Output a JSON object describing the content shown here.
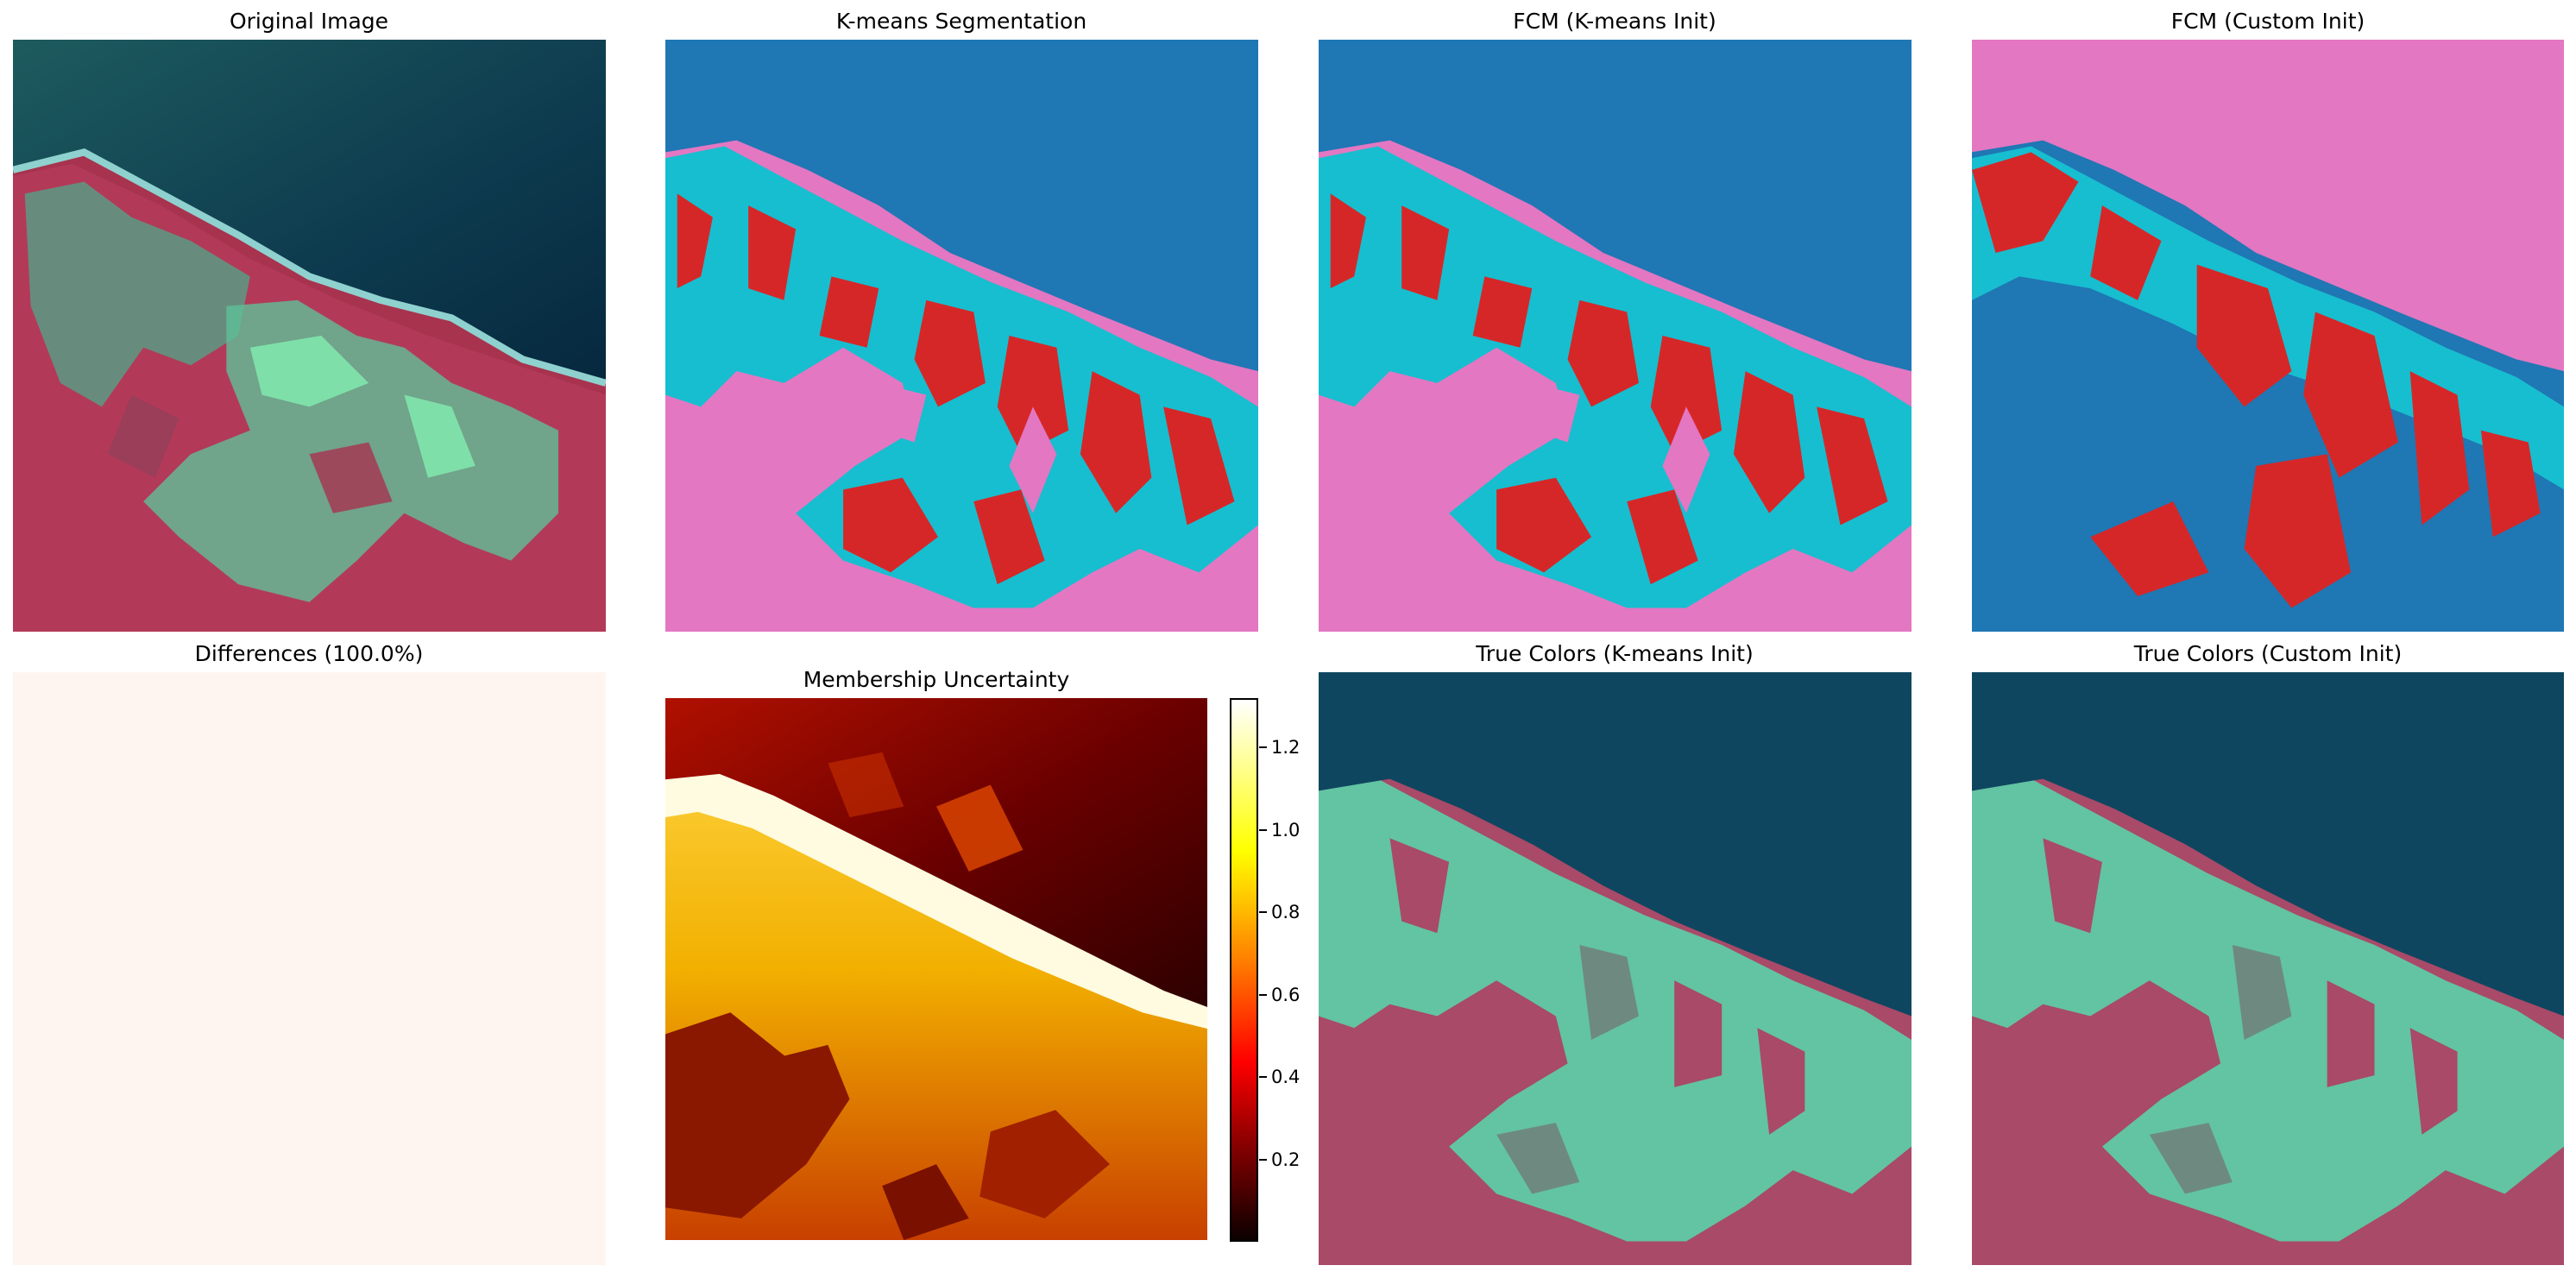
{
  "panels": [
    {
      "title": "Original Image"
    },
    {
      "title": "K-means Segmentation"
    },
    {
      "title": "FCM (K-means Init)"
    },
    {
      "title": "FCM (Custom Init)"
    },
    {
      "title": "Differences (100.0%)"
    },
    {
      "title": "Membership Uncertainty"
    },
    {
      "title": "True Colors (K-means Init)"
    },
    {
      "title": "True Colors (Custom Init)"
    }
  ],
  "colorbar": {
    "ticks": [
      "1.2",
      "1.0",
      "0.8",
      "0.6",
      "0.4",
      "0.2"
    ],
    "range": [
      0,
      1.32
    ],
    "colormap": "hot"
  },
  "segment_palette": {
    "blue": "#1f77b4",
    "cyan": "#17becf",
    "red": "#d62728",
    "pink": "#e377c2"
  },
  "true_color_palette": {
    "sea": "#0e4660",
    "veg": "#62c4a2",
    "soil": "#a84a68",
    "mix": "#6e8a80"
  },
  "difference_fill": "#fff5f0"
}
